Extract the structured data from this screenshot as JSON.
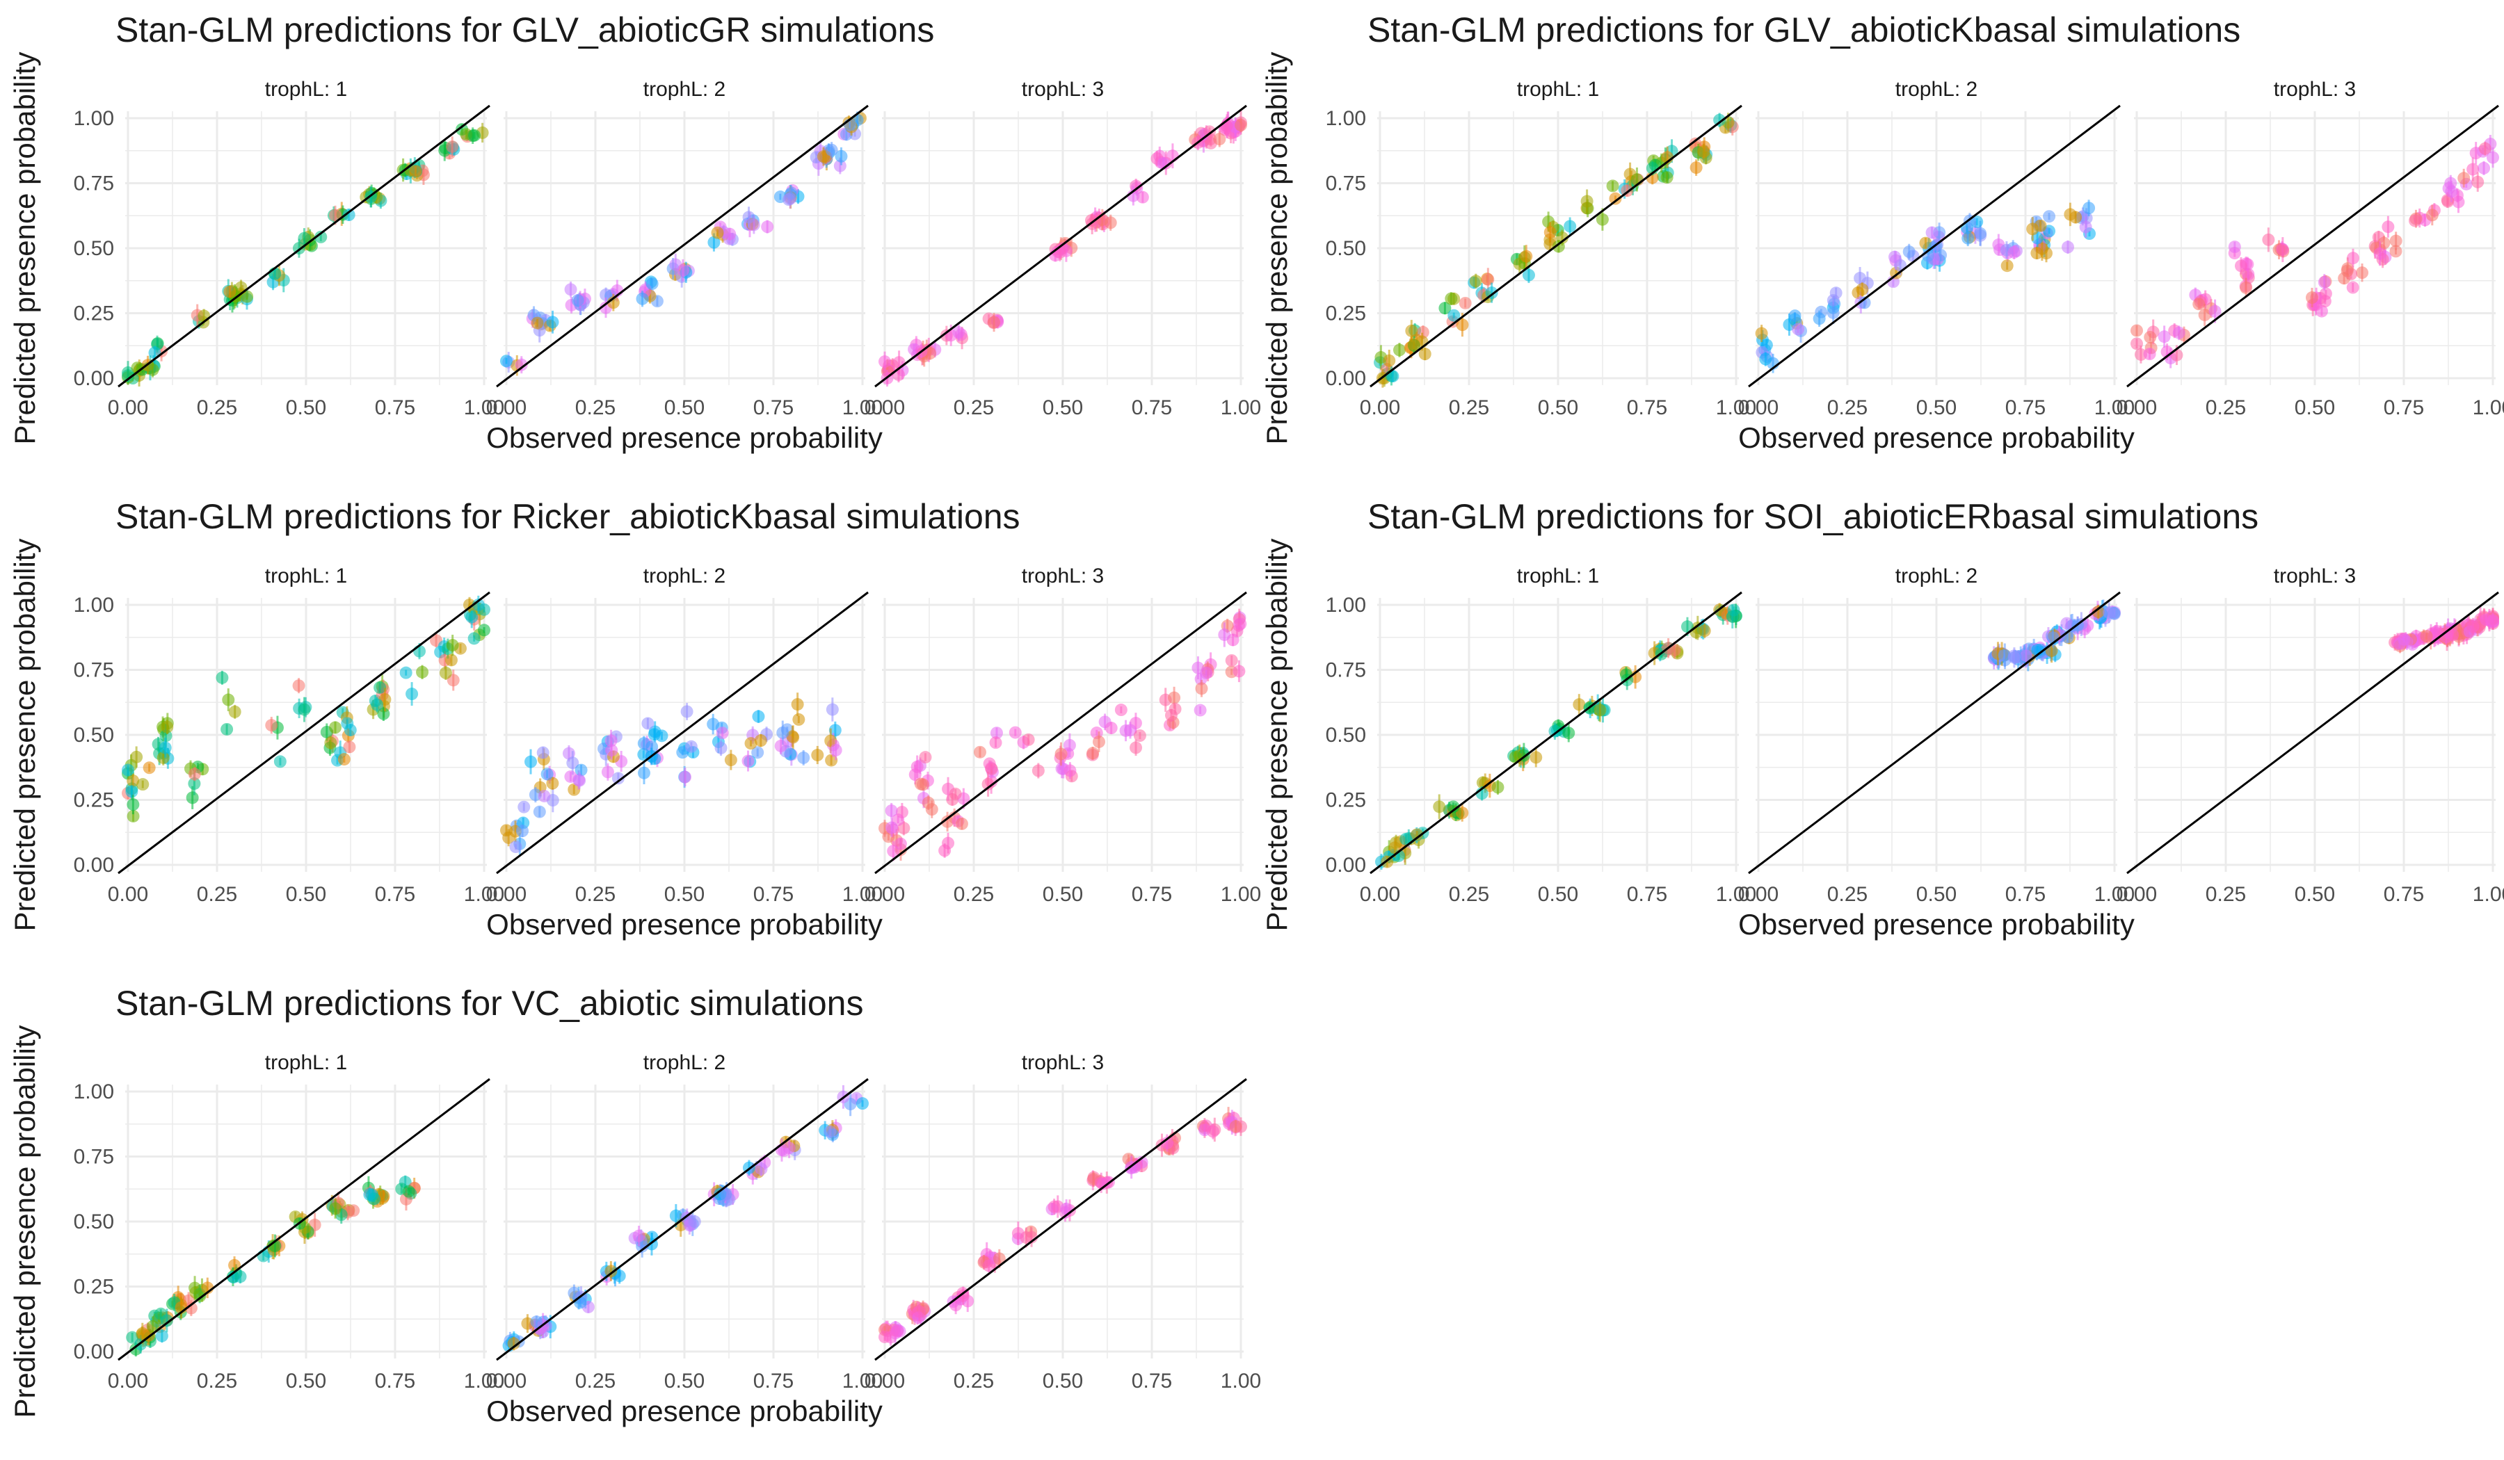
{
  "figure": {
    "xlabel": "Observed presence probability",
    "ylabel": "Predicted presence probability",
    "tick_labels": [
      "0.00",
      "0.25",
      "0.50",
      "0.75",
      "1.00"
    ],
    "last_x_tick_label": "1.00",
    "panel_labels": [
      "trophL: 1",
      "trophL: 2",
      "trophL: 3"
    ],
    "reference_line": "y = x",
    "background": "#ffffff",
    "grid_color": "#ebebeb",
    "text_color": "#1a1a1a",
    "tick_text_color": "#4d4d4d"
  },
  "palettes": {
    "trophL1": [
      "#f8766d",
      "#e58700",
      "#c99800",
      "#a3a500",
      "#6bb100",
      "#00ba38",
      "#00bf7d",
      "#00c0af",
      "#00bcd8"
    ],
    "trophL2": [
      "#00b0f6",
      "#35a2ff",
      "#619cff",
      "#9590ff",
      "#c77cff",
      "#e76bf3",
      "#d39200"
    ],
    "trophL3": [
      "#f8766d",
      "#ff61c3",
      "#ff67a4",
      "#fa62db",
      "#e76bf3"
    ]
  },
  "chart_data": [
    {
      "type": "scatter",
      "title": "Stan-GLM predictions for GLV_abioticGR simulations",
      "xlim": [
        0,
        1
      ],
      "ylim": [
        0,
        1
      ],
      "panels": [
        {
          "label": "trophL: 1",
          "fit": "tight",
          "points": [
            [
              0.02,
              0.01
            ],
            [
              0.05,
              0.04
            ],
            [
              0.1,
              0.12
            ],
            [
              0.2,
              0.22
            ],
            [
              0.3,
              0.32
            ],
            [
              0.4,
              0.38
            ],
            [
              0.5,
              0.52
            ],
            [
              0.6,
              0.62
            ],
            [
              0.7,
              0.7
            ],
            [
              0.8,
              0.8
            ],
            [
              0.9,
              0.88
            ],
            [
              0.97,
              0.95
            ]
          ]
        },
        {
          "label": "trophL: 2",
          "fit": "s-curve",
          "points": [
            [
              0.02,
              0.05
            ],
            [
              0.1,
              0.2
            ],
            [
              0.2,
              0.3
            ],
            [
              0.3,
              0.3
            ],
            [
              0.4,
              0.33
            ],
            [
              0.5,
              0.42
            ],
            [
              0.6,
              0.55
            ],
            [
              0.7,
              0.6
            ],
            [
              0.8,
              0.7
            ],
            [
              0.9,
              0.85
            ],
            [
              0.98,
              0.97
            ]
          ]
        },
        {
          "label": "trophL: 3",
          "fit": "below",
          "points": [
            [
              0.02,
              0.03
            ],
            [
              0.1,
              0.1
            ],
            [
              0.2,
              0.17
            ],
            [
              0.3,
              0.22
            ],
            [
              0.5,
              0.5
            ],
            [
              0.6,
              0.6
            ],
            [
              0.7,
              0.72
            ],
            [
              0.8,
              0.85
            ],
            [
              0.9,
              0.93
            ],
            [
              0.98,
              0.97
            ]
          ]
        }
      ]
    },
    {
      "type": "scatter",
      "title": "Stan-GLM predictions for GLV_abioticKbasal simulations",
      "xlim": [
        0,
        1
      ],
      "ylim": [
        0,
        1
      ],
      "panels": [
        {
          "label": "trophL: 1",
          "fit": "loose",
          "points": [
            [
              0.02,
              0.05
            ],
            [
              0.1,
              0.15
            ],
            [
              0.2,
              0.25
            ],
            [
              0.3,
              0.35
            ],
            [
              0.4,
              0.45
            ],
            [
              0.5,
              0.55
            ],
            [
              0.6,
              0.62
            ],
            [
              0.7,
              0.75
            ],
            [
              0.8,
              0.8
            ],
            [
              0.9,
              0.88
            ],
            [
              0.97,
              0.97
            ]
          ]
        },
        {
          "label": "trophL: 2",
          "fit": "scattered",
          "points": [
            [
              0.02,
              0.1
            ],
            [
              0.1,
              0.2
            ],
            [
              0.2,
              0.25
            ],
            [
              0.3,
              0.35
            ],
            [
              0.4,
              0.45
            ],
            [
              0.5,
              0.5
            ],
            [
              0.6,
              0.55
            ],
            [
              0.7,
              0.5
            ],
            [
              0.8,
              0.55
            ],
            [
              0.9,
              0.6
            ]
          ]
        },
        {
          "label": "trophL: 3",
          "fit": "scattered",
          "points": [
            [
              0.02,
              0.15
            ],
            [
              0.1,
              0.15
            ],
            [
              0.2,
              0.3
            ],
            [
              0.3,
              0.4
            ],
            [
              0.4,
              0.5
            ],
            [
              0.5,
              0.3
            ],
            [
              0.6,
              0.4
            ],
            [
              0.7,
              0.5
            ],
            [
              0.8,
              0.6
            ],
            [
              0.9,
              0.7
            ],
            [
              0.98,
              0.82
            ]
          ]
        }
      ]
    },
    {
      "type": "scatter",
      "title": "Stan-GLM predictions for Ricker_abioticKbasal simulations",
      "xlim": [
        0,
        1
      ],
      "ylim": [
        0,
        1
      ],
      "panels": [
        {
          "label": "trophL: 1",
          "fit": "wide",
          "points": [
            [
              0.02,
              0.3
            ],
            [
              0.1,
              0.5
            ],
            [
              0.2,
              0.4
            ],
            [
              0.3,
              0.6
            ],
            [
              0.4,
              0.5
            ],
            [
              0.5,
              0.6
            ],
            [
              0.6,
              0.5
            ],
            [
              0.7,
              0.6
            ],
            [
              0.8,
              0.7
            ],
            [
              0.9,
              0.8
            ],
            [
              0.98,
              0.95
            ]
          ]
        },
        {
          "label": "trophL: 2",
          "fit": "wide",
          "points": [
            [
              0.02,
              0.15
            ],
            [
              0.1,
              0.3
            ],
            [
              0.2,
              0.35
            ],
            [
              0.3,
              0.4
            ],
            [
              0.4,
              0.5
            ],
            [
              0.5,
              0.4
            ],
            [
              0.6,
              0.45
            ],
            [
              0.7,
              0.5
            ],
            [
              0.8,
              0.5
            ],
            [
              0.9,
              0.5
            ]
          ]
        },
        {
          "label": "trophL: 3",
          "fit": "wide",
          "points": [
            [
              0.02,
              0.15
            ],
            [
              0.1,
              0.3
            ],
            [
              0.2,
              0.2
            ],
            [
              0.3,
              0.4
            ],
            [
              0.4,
              0.5
            ],
            [
              0.5,
              0.4
            ],
            [
              0.6,
              0.5
            ],
            [
              0.7,
              0.5
            ],
            [
              0.8,
              0.6
            ],
            [
              0.9,
              0.7
            ],
            [
              0.98,
              0.9
            ]
          ]
        }
      ]
    },
    {
      "type": "scatter",
      "title": "Stan-GLM predictions for SOI_abioticERbasal simulations",
      "xlim": [
        0,
        1
      ],
      "ylim": [
        0,
        1
      ],
      "panels": [
        {
          "label": "trophL: 1",
          "fit": "tight",
          "points": [
            [
              0.02,
              0.03
            ],
            [
              0.05,
              0.06
            ],
            [
              0.1,
              0.1
            ],
            [
              0.2,
              0.2
            ],
            [
              0.3,
              0.3
            ],
            [
              0.4,
              0.42
            ],
            [
              0.5,
              0.52
            ],
            [
              0.6,
              0.6
            ],
            [
              0.7,
              0.72
            ],
            [
              0.8,
              0.82
            ],
            [
              0.9,
              0.9
            ],
            [
              0.98,
              0.97
            ]
          ]
        },
        {
          "label": "trophL: 2",
          "fit": "cluster",
          "points": [
            [
              0.68,
              0.8
            ],
            [
              0.75,
              0.8
            ],
            [
              0.8,
              0.82
            ],
            [
              0.85,
              0.88
            ],
            [
              0.9,
              0.92
            ],
            [
              0.95,
              0.96
            ],
            [
              0.98,
              0.97
            ]
          ]
        },
        {
          "label": "trophL: 3",
          "fit": "cluster",
          "points": [
            [
              0.75,
              0.86
            ],
            [
              0.8,
              0.87
            ],
            [
              0.85,
              0.88
            ],
            [
              0.9,
              0.9
            ],
            [
              0.95,
              0.92
            ],
            [
              0.99,
              0.94
            ]
          ]
        }
      ]
    },
    {
      "type": "scatter",
      "title": "Stan-GLM predictions for VC_abiotic simulations",
      "xlim": [
        0,
        1
      ],
      "ylim": [
        0,
        1
      ],
      "panels": [
        {
          "label": "trophL: 1",
          "fit": "below",
          "points": [
            [
              0.02,
              0.02
            ],
            [
              0.05,
              0.06
            ],
            [
              0.1,
              0.12
            ],
            [
              0.15,
              0.18
            ],
            [
              0.2,
              0.22
            ],
            [
              0.3,
              0.3
            ],
            [
              0.4,
              0.4
            ],
            [
              0.5,
              0.48
            ],
            [
              0.6,
              0.55
            ],
            [
              0.7,
              0.6
            ],
            [
              0.78,
              0.62
            ]
          ]
        },
        {
          "label": "trophL: 2",
          "fit": "tight",
          "points": [
            [
              0.02,
              0.03
            ],
            [
              0.1,
              0.1
            ],
            [
              0.2,
              0.2
            ],
            [
              0.3,
              0.3
            ],
            [
              0.4,
              0.42
            ],
            [
              0.5,
              0.5
            ],
            [
              0.6,
              0.6
            ],
            [
              0.7,
              0.7
            ],
            [
              0.8,
              0.78
            ],
            [
              0.9,
              0.85
            ],
            [
              0.98,
              0.98
            ]
          ]
        },
        {
          "label": "trophL: 3",
          "fit": "tight",
          "points": [
            [
              0.02,
              0.08
            ],
            [
              0.1,
              0.15
            ],
            [
              0.2,
              0.2
            ],
            [
              0.3,
              0.35
            ],
            [
              0.4,
              0.45
            ],
            [
              0.5,
              0.55
            ],
            [
              0.6,
              0.65
            ],
            [
              0.7,
              0.72
            ],
            [
              0.8,
              0.8
            ],
            [
              0.9,
              0.86
            ],
            [
              0.98,
              0.88
            ]
          ]
        }
      ]
    }
  ]
}
